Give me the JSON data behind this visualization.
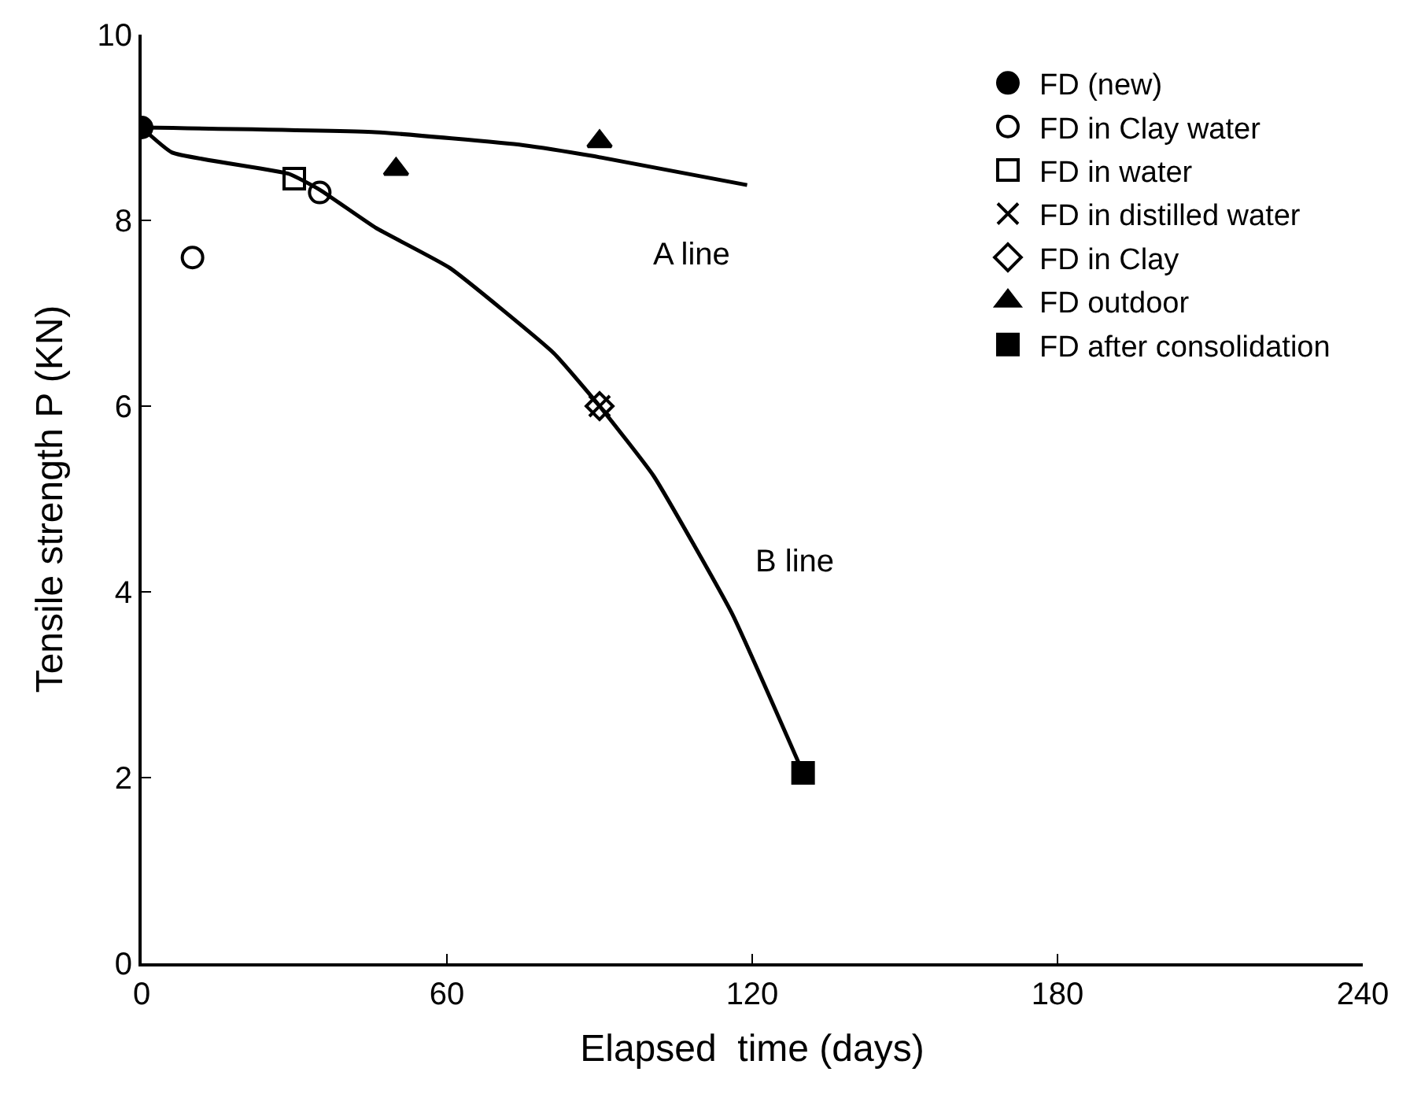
{
  "chart_data": {
    "type": "scatter",
    "xlabel": "Elapsed  time (days)",
    "ylabel": "Tensile strength P (KN)",
    "xlim": [
      0,
      240
    ],
    "xticks": [
      0,
      60,
      120,
      180,
      240
    ],
    "ylim": [
      0,
      10
    ],
    "yticks": [
      0,
      2,
      4,
      6,
      8,
      10
    ],
    "legend": "top right",
    "series": [
      {
        "type": "line",
        "color": "#000000",
        "marker": "none",
        "line_style": "solid",
        "x": [
          0,
          46,
          75,
          89,
          119
        ],
        "values": [
          9.0,
          8.95,
          8.81,
          8.69,
          8.38
        ]
      },
      {
        "type": "line",
        "color": "#000000",
        "marker": "none",
        "line_style": "solid",
        "x": [
          0,
          6,
          29,
          35,
          46,
          60.5,
          81,
          90,
          100.6,
          116,
          130
        ],
        "values": [
          9.0,
          8.73,
          8.5,
          8.33,
          7.92,
          7.49,
          6.57,
          6.0,
          5.25,
          3.77,
          2.05
        ]
      },
      {
        "name": "FD (new)",
        "color": "#000000",
        "marker": "circle",
        "x": [
          0
        ],
        "values": [
          9.0
        ]
      },
      {
        "name": "FD in Clay water",
        "color": "#000000",
        "marker": "circle-open",
        "x": [
          10,
          35
        ],
        "values": [
          7.6,
          8.3
        ]
      },
      {
        "name": "FD in water",
        "color": "#000000",
        "marker": "square-open",
        "x": [
          30
        ],
        "values": [
          8.45
        ]
      },
      {
        "name": "FD in distilled water",
        "color": "#000000",
        "marker": "cross",
        "x": [
          90
        ],
        "values": [
          6.0
        ]
      },
      {
        "name": "FD in Clay",
        "color": "#000000",
        "marker": "diamond-open",
        "x": [
          90
        ],
        "values": [
          6.0
        ]
      },
      {
        "name": "FD outdoor",
        "color": "#000000",
        "marker": "triangle",
        "x": [
          50,
          90
        ],
        "values": [
          8.55,
          8.85
        ]
      },
      {
        "name": "FD after consolidation",
        "color": "#000000",
        "marker": "square",
        "x": [
          130
        ],
        "values": [
          2.05
        ]
      }
    ],
    "annotations": [
      "A line",
      "B line"
    ]
  }
}
